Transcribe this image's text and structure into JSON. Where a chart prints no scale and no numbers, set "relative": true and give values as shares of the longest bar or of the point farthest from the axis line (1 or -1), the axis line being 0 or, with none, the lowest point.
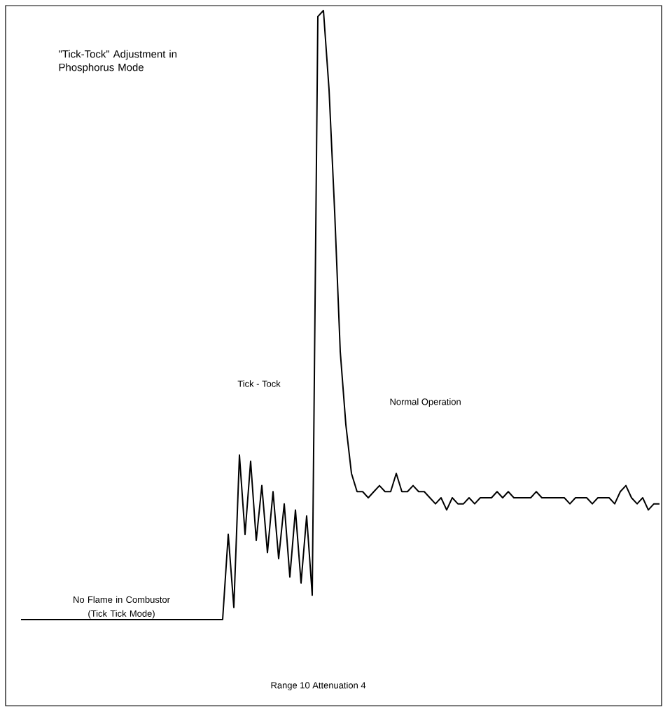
{
  "chart_data": {
    "type": "line",
    "relative": true,
    "title": "\"Tick-Tock\" Adjustment in Phosphorus Mode",
    "annotations": [
      "Tick - Tock",
      "Normal Operation",
      "No Flame in Combustor (Tick Tick Mode)",
      "Range 10  Attenuation 4"
    ],
    "categories": [
      null,
      null,
      null,
      null,
      null,
      null,
      null,
      null,
      null,
      null,
      null,
      null,
      null,
      null,
      null,
      null,
      null,
      null,
      null,
      null,
      null,
      null,
      null,
      null,
      null,
      null,
      null,
      null,
      null,
      null,
      null,
      null,
      null,
      null,
      null,
      null,
      null,
      null,
      null,
      null,
      null,
      null,
      null,
      null,
      null,
      null,
      null,
      null,
      null,
      null,
      null,
      null,
      null,
      null,
      null,
      null,
      null,
      null,
      null,
      null,
      null,
      null,
      null,
      null,
      null,
      null,
      null,
      null,
      null,
      null,
      null,
      null,
      null,
      null,
      null,
      null,
      null,
      null,
      null,
      null,
      null,
      null,
      null,
      null,
      null,
      null,
      null,
      null,
      null,
      null,
      null,
      null,
      null,
      null,
      null,
      null,
      null,
      null,
      null,
      null,
      null,
      null,
      null,
      null,
      null,
      null,
      null,
      null,
      null,
      null,
      null,
      null,
      null,
      null,
      null
    ],
    "series": [
      {
        "color": "#000000",
        "values": [
          0,
          0,
          0,
          0,
          0,
          0,
          0,
          0,
          0,
          0,
          0,
          0,
          0,
          0,
          0,
          0,
          0,
          0,
          0,
          0,
          0,
          0,
          0,
          0,
          0,
          0,
          0,
          0,
          0,
          0,
          0,
          0,
          0,
          0,
          0,
          0,
          0,
          0.14,
          0.02,
          0.27,
          0.14,
          0.26,
          0.13,
          0.22,
          0.11,
          0.21,
          0.1,
          0.19,
          0.07,
          0.18,
          0.06,
          0.17,
          0.04,
          0.99,
          1,
          0.87,
          0.67,
          0.44,
          0.32,
          0.24,
          0.21,
          0.21,
          0.2,
          0.21,
          0.22,
          0.21,
          0.21,
          0.24,
          0.21,
          0.21,
          0.22,
          0.21,
          0.21,
          0.2,
          0.19,
          0.2,
          0.18,
          0.2,
          0.19,
          0.19,
          0.2,
          0.19,
          0.2,
          0.2,
          0.2,
          0.21,
          0.2,
          0.21,
          0.2,
          0.2,
          0.2,
          0.2,
          0.21,
          0.2,
          0.2,
          0.2,
          0.2,
          0.2,
          0.19,
          0.2,
          0.2,
          0.2,
          0.19,
          0.2,
          0.2,
          0.2,
          0.19,
          0.21,
          0.22,
          0.2,
          0.19,
          0.2,
          0.18,
          0.19,
          0.19
        ]
      }
    ]
  }
}
